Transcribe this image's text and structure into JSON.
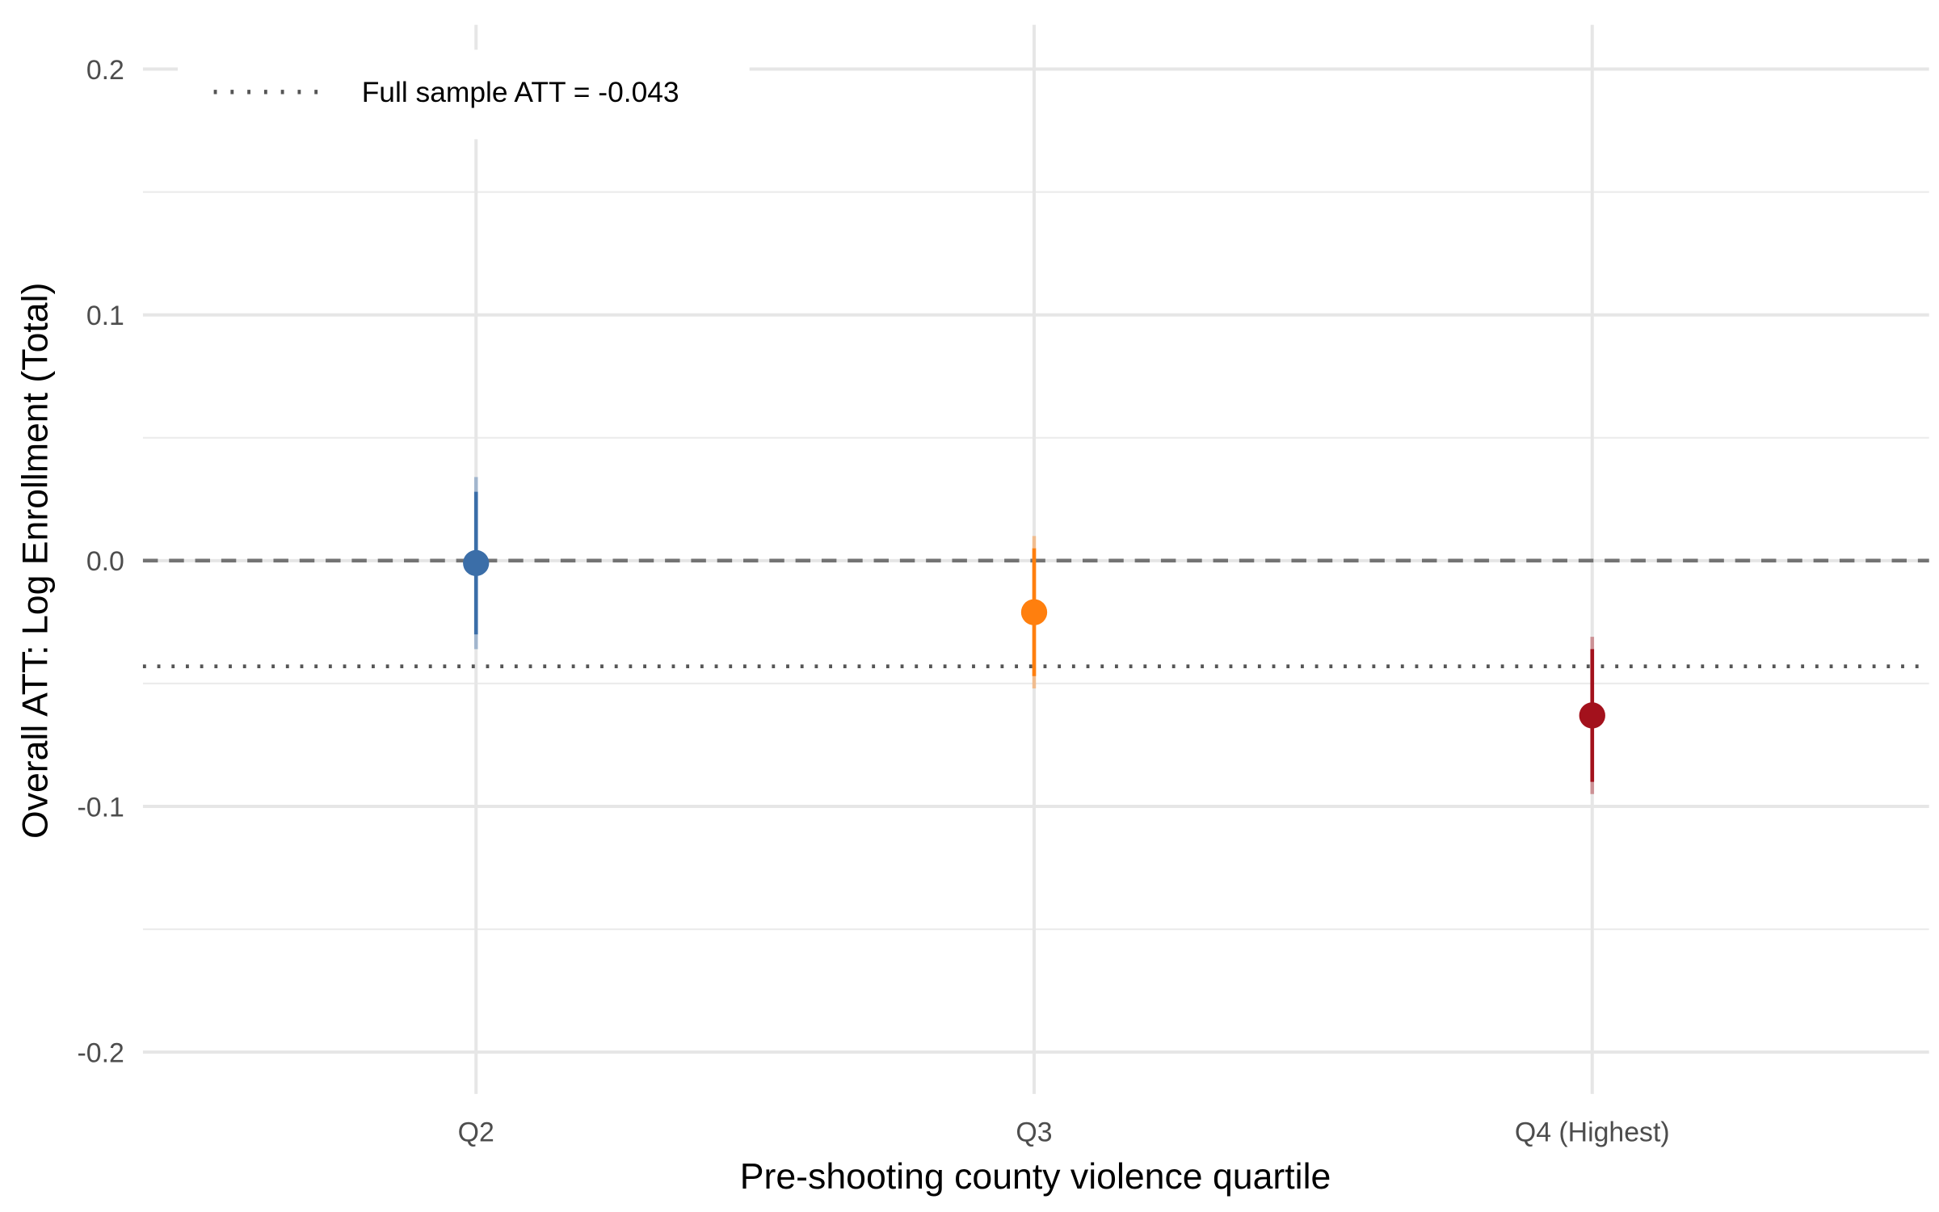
{
  "chart_data": {
    "type": "scatter",
    "subtype": "point-range",
    "title": "",
    "xlabel": "Pre-shooting county violence quartile",
    "ylabel": "Overall ATT: Log Enrollment (Total)",
    "categories": [
      "Q2",
      "Q3",
      "Q4 (Highest)"
    ],
    "ylim": [
      -0.22,
      0.22
    ],
    "yticks": [
      0.2,
      0.1,
      0.0,
      -0.1,
      -0.2
    ],
    "ytick_labels": [
      "0.2",
      "0.1",
      "0.0",
      "-0.1",
      "-0.2"
    ],
    "grid": true,
    "points": [
      {
        "category": "Q2",
        "estimate": -0.001,
        "ci_inner": [
          -0.03,
          0.028
        ],
        "ci_outer": [
          -0.036,
          0.034
        ],
        "color": "#3b6ea8"
      },
      {
        "category": "Q3",
        "estimate": -0.021,
        "ci_inner": [
          -0.047,
          0.005
        ],
        "ci_outer": [
          -0.052,
          0.01
        ],
        "color": "#ff7f0e"
      },
      {
        "category": "Q4 (Highest)",
        "estimate": -0.063,
        "ci_inner": [
          -0.09,
          -0.036
        ],
        "ci_outer": [
          -0.095,
          -0.031
        ],
        "color": "#a3111c"
      }
    ],
    "reference_lines": [
      {
        "y": 0,
        "style": "dashed",
        "color": "#737373"
      },
      {
        "y": -0.043,
        "style": "dotted",
        "color": "#555555",
        "label": "Full sample ATT = -0.043"
      }
    ],
    "legend": {
      "placement": "top-left",
      "entries": [
        "Full sample ATT = -0.043"
      ]
    }
  }
}
